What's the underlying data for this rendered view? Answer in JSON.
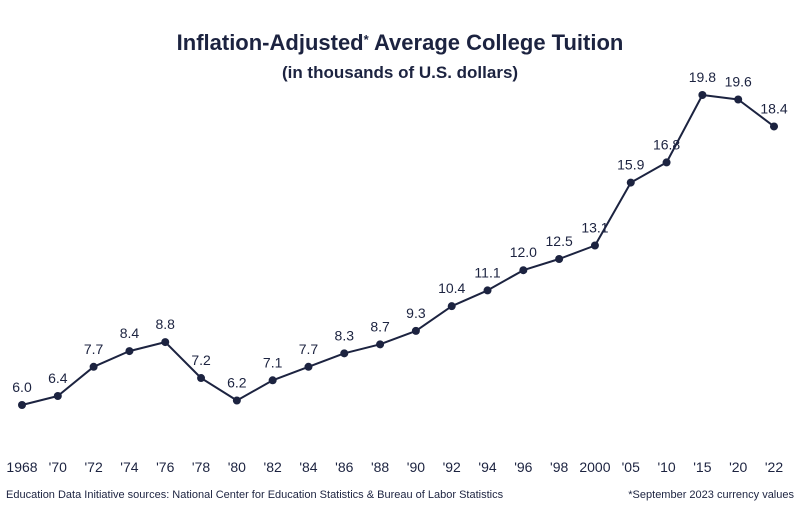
{
  "title_main": "Inflation-Adjusted",
  "title_star": "*",
  "title_rest": " Average College Tuition",
  "subtitle": "(in thousands of U.S. dollars)",
  "source": "Education Data Initiative sources: National Center for Education Statistics & Bureau of Labor Statistics",
  "footnote": "*September 2023 currency values",
  "colors": {
    "line": "#1c2340",
    "text": "#1c2340",
    "background": "#ffffff"
  },
  "chart_data": {
    "type": "line",
    "title": "Inflation-Adjusted* Average College Tuition",
    "subtitle": "(in thousands of U.S. dollars)",
    "xlabel": "",
    "ylabel": "",
    "categories": [
      "1968",
      "'70",
      "'72",
      "'74",
      "'76",
      "'78",
      "'80",
      "'82",
      "'84",
      "'86",
      "'88",
      "'90",
      "'92",
      "'94",
      "'96",
      "'98",
      "2000",
      "'05",
      "'10",
      "'15",
      "'20",
      "'22"
    ],
    "series": [
      {
        "name": "Average College Tuition",
        "values": [
          6.0,
          6.4,
          7.7,
          8.4,
          8.8,
          7.2,
          6.2,
          7.1,
          7.7,
          8.3,
          8.7,
          9.3,
          10.4,
          11.1,
          12.0,
          12.5,
          13.1,
          15.9,
          16.8,
          19.8,
          19.6,
          18.4
        ]
      }
    ],
    "data_labels": [
      "6.0",
      "6.4",
      "7.7",
      "8.4",
      "8.8",
      "7.2",
      "6.2",
      "7.1",
      "7.7",
      "8.3",
      "8.7",
      "9.3",
      "10.4",
      "11.1",
      "12.0",
      "12.5",
      "13.1",
      "15.9",
      "16.8",
      "19.8",
      "19.6",
      "18.4"
    ],
    "ylim": [
      6.0,
      19.8
    ],
    "grid": false,
    "legend": "none"
  }
}
